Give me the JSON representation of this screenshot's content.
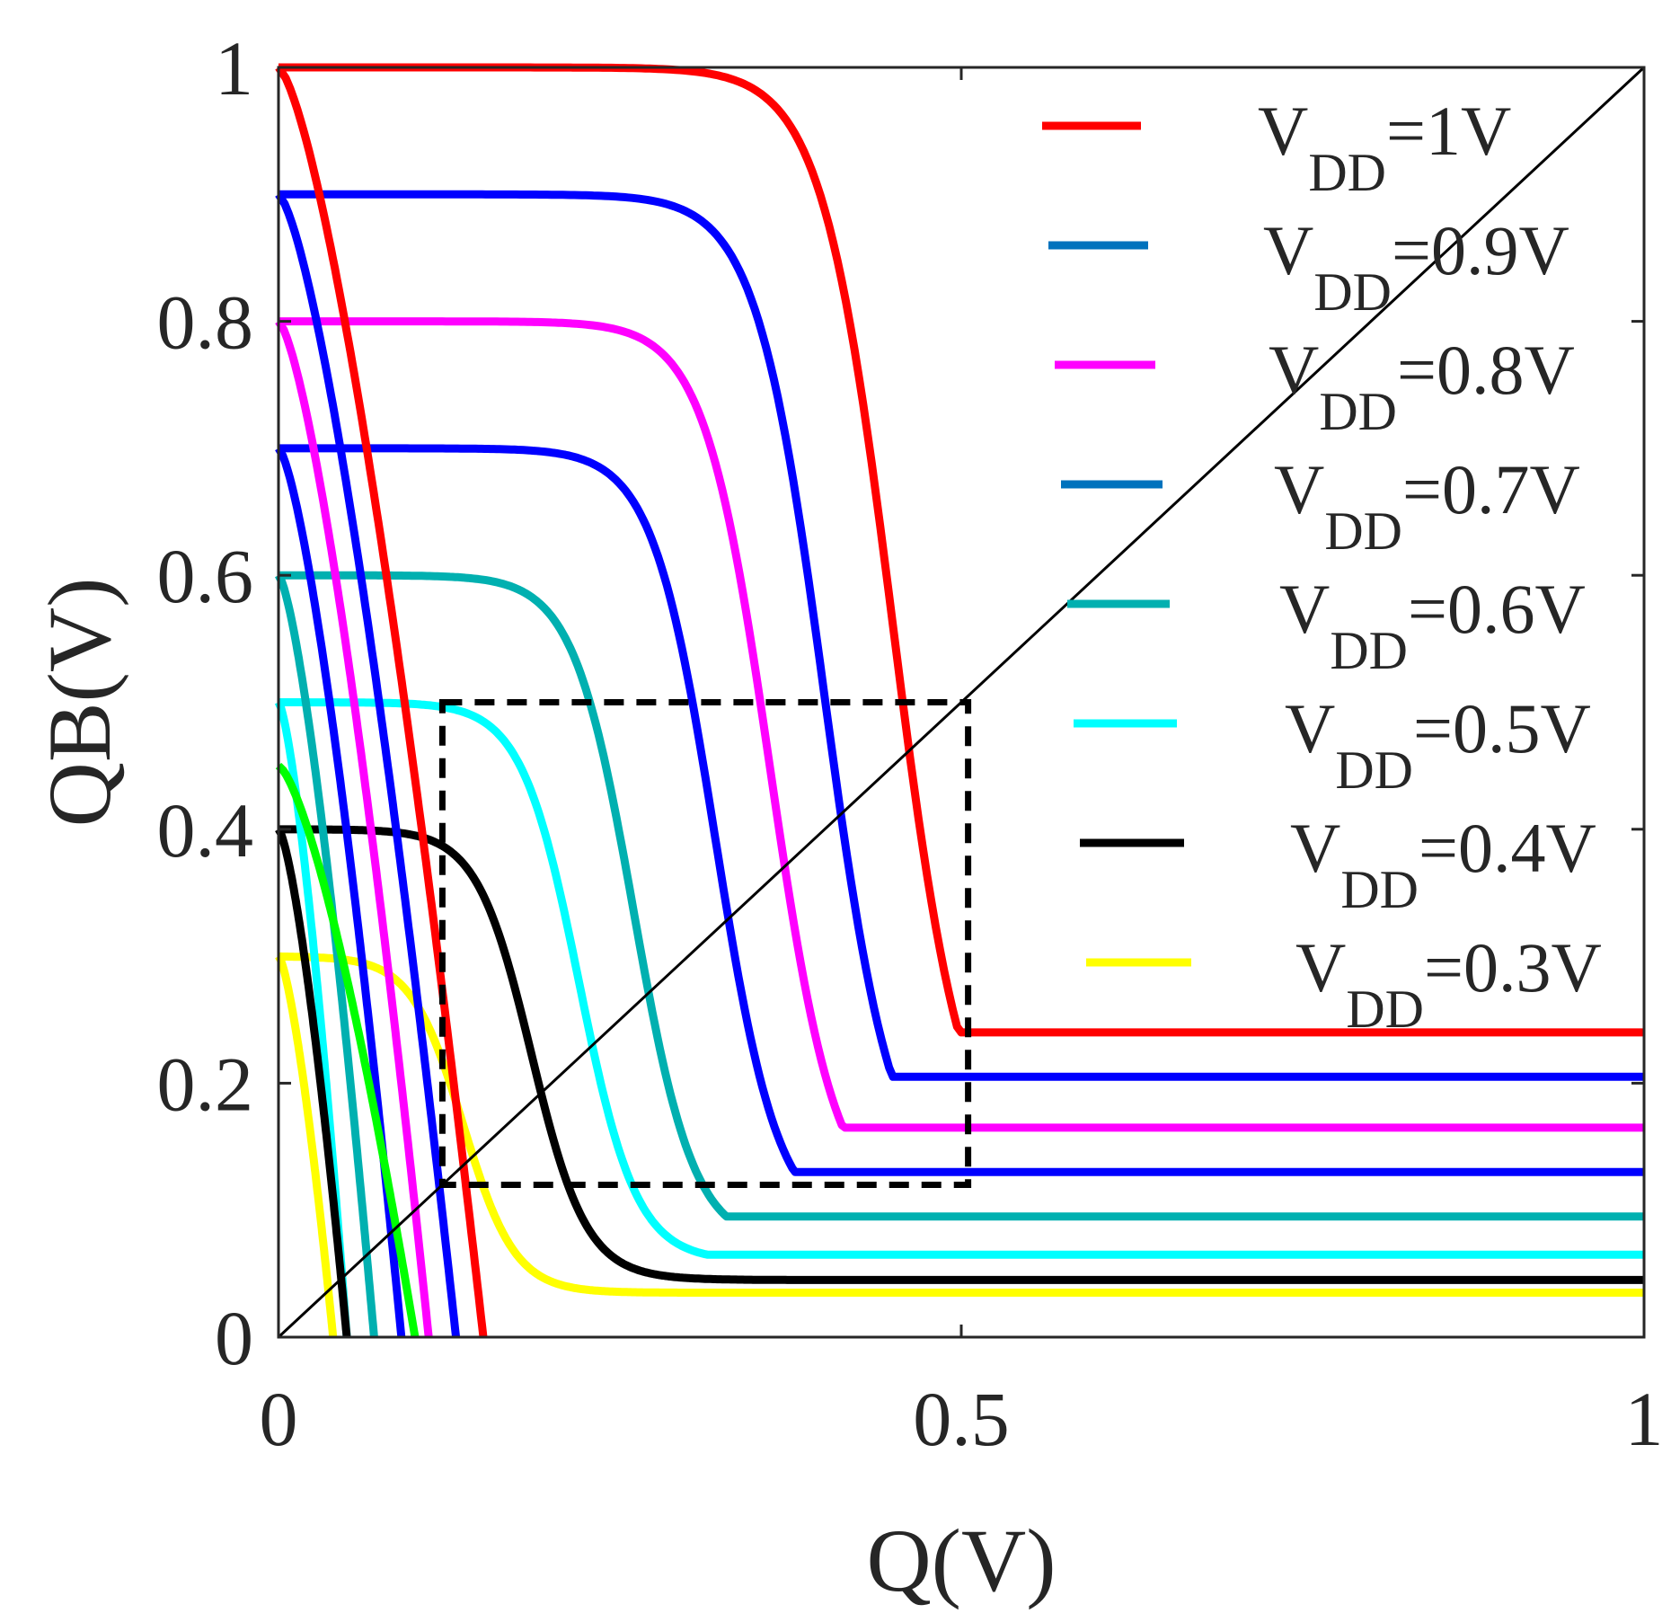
{
  "chart_data": {
    "type": "line",
    "title": "",
    "xlabel": "Q(V)",
    "ylabel": "QB(V)",
    "xlim": [
      0,
      1
    ],
    "ylim": [
      0,
      1
    ],
    "xticks": [
      "0",
      "0.5",
      "1"
    ],
    "yticks": [
      "0",
      "0.2",
      "0.4",
      "0.6",
      "0.8",
      "1"
    ],
    "grid": false,
    "legend_position": "top-right",
    "series": [
      {
        "name": "VDD=1V",
        "vdd": 1.0,
        "color": "#ff0000",
        "legend_color": "#ff0000",
        "vtc_low": 0.24,
        "mirror_x_end": 0.15,
        "transition_q": 0.45,
        "flat_q": 1.0
      },
      {
        "name": "VDD=0.9V",
        "vdd": 0.9,
        "color": "#0000ff",
        "legend_color": "#0072bd",
        "vtc_low": 0.205,
        "mirror_x_end": 0.13,
        "transition_q": 0.4,
        "flat_q": 0.9
      },
      {
        "name": "VDD=0.8V",
        "vdd": 0.8,
        "color": "#ff00ff",
        "legend_color": "#ff00ff",
        "vtc_low": 0.165,
        "mirror_x_end": 0.11,
        "transition_q": 0.36,
        "flat_q": 0.8
      },
      {
        "name": "VDD=0.7V",
        "vdd": 0.7,
        "color": "#0000ff",
        "legend_color": "#0072bd",
        "vtc_low": 0.13,
        "mirror_x_end": 0.09,
        "transition_q": 0.32,
        "flat_q": 0.7
      },
      {
        "name": "VDD=0.6V",
        "vdd": 0.6,
        "color": "#00b0b0",
        "legend_color": "#00b0b0",
        "vtc_low": 0.095,
        "mirror_x_end": 0.07,
        "transition_q": 0.26,
        "flat_q": 0.6
      },
      {
        "name": "VDD=0.5V",
        "vdd": 0.5,
        "color": "#00ffff",
        "legend_color": "#00ffff",
        "vtc_low": 0.065,
        "mirror_x_end": 0.05,
        "transition_q": 0.22,
        "flat_q": 0.5
      },
      {
        "name": "VDD=0.4V",
        "vdd": 0.4,
        "color": "#000000",
        "legend_color": "#000000",
        "vtc_low": 0.045,
        "mirror_x_end": 0.05,
        "transition_q": 0.185,
        "flat_q": 0.4
      },
      {
        "name": "VDD=0.3V",
        "vdd": 0.3,
        "color": "#ffff00",
        "legend_color": "#ffff00",
        "vtc_low": 0.035,
        "mirror_x_end": 0.04,
        "transition_q": 0.135,
        "flat_q": 0.3
      }
    ],
    "extra_mirror_series": [
      {
        "name": "green mirror",
        "color": "#00ff00",
        "x_end": 0.1
      }
    ],
    "reference_lines": [
      {
        "name": "Q=QB diagonal",
        "from": [
          0,
          0
        ],
        "to": [
          1,
          1
        ],
        "color": "#000000"
      }
    ],
    "annotations": [
      {
        "name": "noise margin square",
        "type": "dashed-box",
        "x": [
          0.12,
          0.505
        ],
        "y": [
          0.12,
          0.5
        ],
        "color": "#000000"
      }
    ],
    "legend": [
      {
        "base": "V",
        "sub": "DD",
        "value": "=1V"
      },
      {
        "base": "V",
        "sub": "DD",
        "value": "=0.9V"
      },
      {
        "base": "V",
        "sub": "DD",
        "value": "=0.8V"
      },
      {
        "base": "V",
        "sub": "DD",
        "value": "=0.7V"
      },
      {
        "base": "V",
        "sub": "DD",
        "value": "=0.6V"
      },
      {
        "base": "V",
        "sub": "DD",
        "value": "=0.5V"
      },
      {
        "base": "V",
        "sub": "DD",
        "value": "=0.4V"
      },
      {
        "base": "V",
        "sub": "DD",
        "value": "=0.3V"
      }
    ]
  }
}
